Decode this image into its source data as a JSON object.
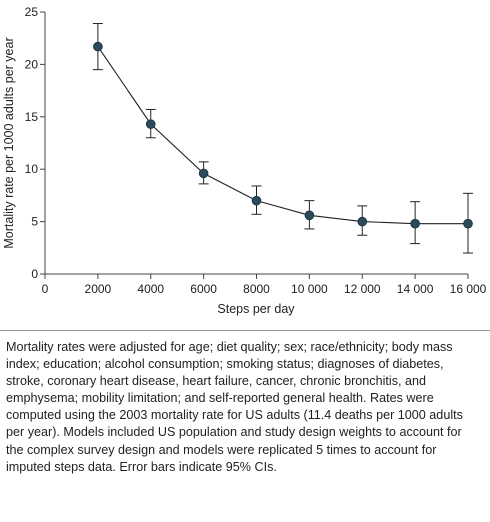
{
  "chart_data": {
    "type": "line",
    "xlabel": "Steps per day",
    "ylabel": "Mortality rate per 1000 adults per year",
    "xlim": [
      0,
      16000
    ],
    "ylim": [
      0,
      25
    ],
    "x_ticks": [
      0,
      2000,
      4000,
      6000,
      8000,
      10000,
      12000,
      14000,
      16000
    ],
    "x_tick_labels": [
      "0",
      "2000",
      "4000",
      "6000",
      "8000",
      "10 000",
      "12 000",
      "14 000",
      "16 000"
    ],
    "y_ticks": [
      0,
      5,
      10,
      15,
      20,
      25
    ],
    "y_tick_labels": [
      "0",
      "5",
      "10",
      "15",
      "20",
      "25"
    ],
    "grid": false,
    "series": [
      {
        "color": "#2b4a5c",
        "points": [
          {
            "x": 2000,
            "y": 21.7,
            "lower": 19.5,
            "upper": 23.9
          },
          {
            "x": 4000,
            "y": 14.3,
            "lower": 13.0,
            "upper": 15.7
          },
          {
            "x": 6000,
            "y": 9.6,
            "lower": 8.6,
            "upper": 10.7
          },
          {
            "x": 8000,
            "y": 7.0,
            "lower": 5.7,
            "upper": 8.4
          },
          {
            "x": 10000,
            "y": 5.6,
            "lower": 4.3,
            "upper": 7.0
          },
          {
            "x": 12000,
            "y": 5.0,
            "lower": 3.7,
            "upper": 6.5
          },
          {
            "x": 14000,
            "y": 4.8,
            "lower": 2.9,
            "upper": 6.9
          },
          {
            "x": 16000,
            "y": 4.8,
            "lower": 2.0,
            "upper": 7.7
          }
        ]
      }
    ]
  },
  "caption": "Mortality rates were adjusted for age; diet quality; sex; race/ethnicity; body mass index; education; alcohol consumption; smoking status; diagnoses of diabetes, stroke, coronary heart disease, heart failure, cancer, chronic bronchitis, and emphysema; mobility limitation; and self-reported general health. Rates were computed using the 2003 mortality rate for US adults (11.4 deaths per 1000 adults per year). Models included US population and study design weights to account for the complex survey design and models were replicated 5 times to account for imputed steps data. Error bars indicate 95% CIs."
}
